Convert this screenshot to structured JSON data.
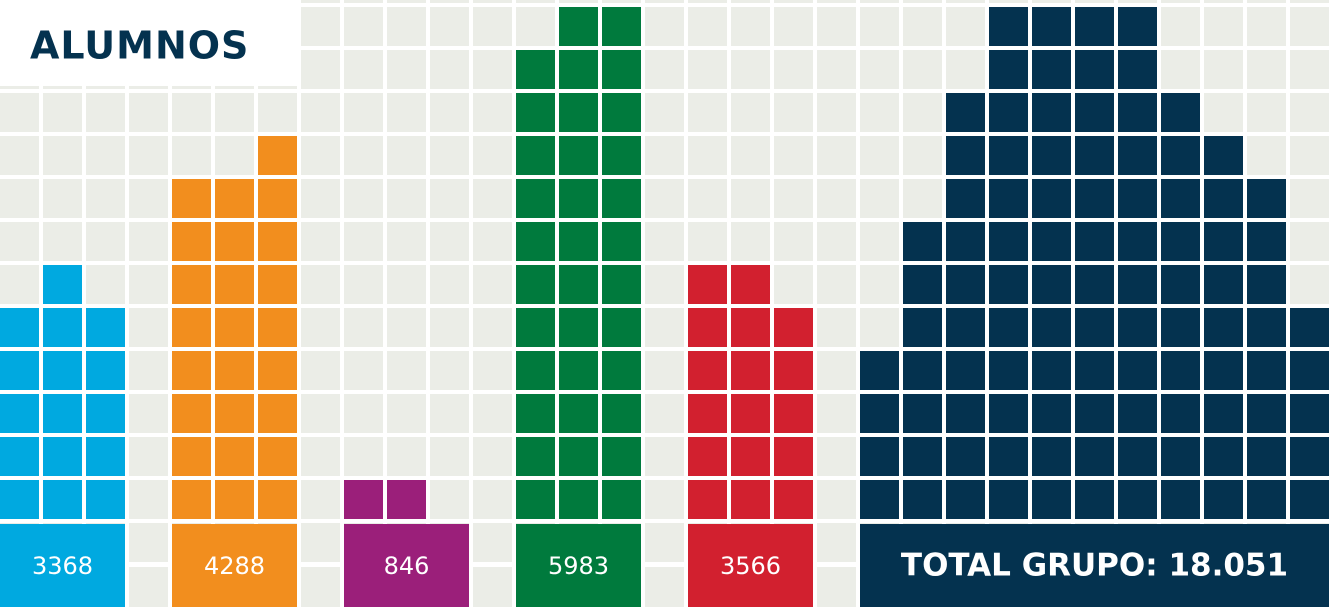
{
  "chart_data": {
    "type": "waffle",
    "title": "ALUMNOS",
    "series": [
      {
        "value": 3368,
        "color": "#00a9e0",
        "columns": [
          5,
          6,
          5
        ]
      },
      {
        "value": 4288,
        "color": "#f28e1e",
        "columns": [
          8,
          8,
          9
        ]
      },
      {
        "value": 846,
        "color": "#9b1f7a",
        "columns": [
          1,
          1,
          0
        ]
      },
      {
        "value": 5983,
        "color": "#007a3d",
        "columns": [
          11,
          12,
          12
        ]
      },
      {
        "value": 3566,
        "color": "#d2202f",
        "columns": [
          6,
          6,
          5
        ]
      },
      {
        "label": "TOTAL GRUPO: 18.051",
        "color": "#04324f",
        "columns": [
          4,
          7,
          10,
          12,
          12,
          12,
          12,
          10,
          9,
          8,
          5
        ]
      }
    ]
  }
}
